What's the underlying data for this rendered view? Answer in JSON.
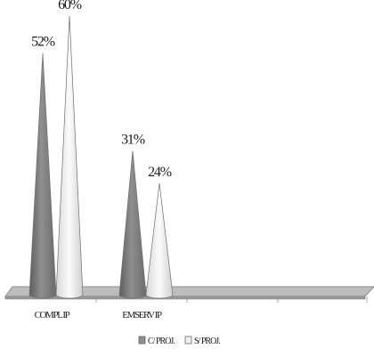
{
  "chart_data": {
    "type": "bar",
    "shape": "cone",
    "categories": [
      "COMPL IP",
      "EMSERV IP"
    ],
    "series": [
      {
        "name": "C/ PROJ.",
        "values": [
          52,
          31
        ],
        "color": "#8f8f8f"
      },
      {
        "name": "S/ PROJ.",
        "values": [
          60,
          24
        ],
        "color": "#f0f0f0"
      }
    ],
    "value_labels": [
      [
        "52%",
        "31%"
      ],
      [
        "60%",
        "24%"
      ]
    ],
    "value_unit": "%",
    "ylim": [
      0,
      60
    ],
    "grid": false,
    "legend_position": "bottom-center",
    "floor_color": "#bdbdbd"
  }
}
